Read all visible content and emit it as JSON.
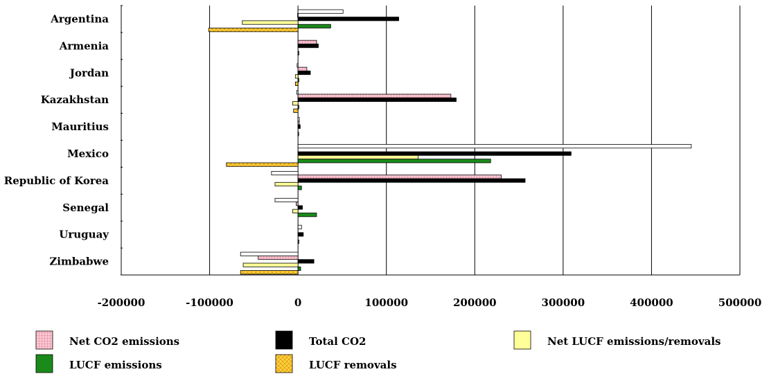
{
  "chart_data": {
    "type": "bar",
    "orientation": "horizontal",
    "categories": [
      "Argentina",
      "Armenia",
      "Jordan",
      "Kazakhstan",
      "Mauritius",
      "Mexico",
      "Republic of Korea",
      "Senegal",
      "Uruguay",
      "Zimbabwe"
    ],
    "xlim": [
      -200000,
      500000
    ],
    "xticks": [
      "-200000",
      "-100000",
      "0",
      "100000",
      "200000",
      "300000",
      "400000",
      "500000"
    ],
    "grid": "vertical",
    "legend_position": "bottom",
    "title": "",
    "xlabel": "",
    "ylabel": "",
    "series": [
      {
        "name": "",
        "color": "#ffffff",
        "pattern": "none",
        "values": [
          51000,
          0,
          -1000,
          -1500,
          1500,
          445000,
          -30000,
          -26000,
          4000,
          -65000
        ]
      },
      {
        "name": "Net CO2 emissions",
        "color": "#f6b3c2",
        "pattern": "grid",
        "values": [
          -500,
          21000,
          10000,
          173000,
          1500,
          0,
          230000,
          -2000,
          0,
          -45000
        ]
      },
      {
        "name": "Total CO2",
        "color": "#000000",
        "pattern": "none",
        "values": [
          114000,
          23000,
          14000,
          179000,
          2500,
          309000,
          257000,
          5000,
          6000,
          18000
        ]
      },
      {
        "name": "Net LUCF emissions/removals",
        "color": "#ffff99",
        "pattern": "none",
        "values": [
          -63000,
          0,
          -3000,
          -6000,
          0,
          136000,
          -26000,
          -6000,
          0,
          -62000
        ]
      },
      {
        "name": "LUCF emissions",
        "color": "#1a8a1a",
        "pattern": "none",
        "values": [
          37000,
          1000,
          1000,
          1000,
          500,
          218000,
          4000,
          21000,
          1000,
          3000
        ]
      },
      {
        "name": "LUCF removals",
        "color": "#ffcc33",
        "pattern": "crosshatch",
        "values": [
          -101000,
          0,
          -3000,
          -5000,
          0,
          -81000,
          0,
          0,
          0,
          -65000
        ]
      }
    ]
  }
}
